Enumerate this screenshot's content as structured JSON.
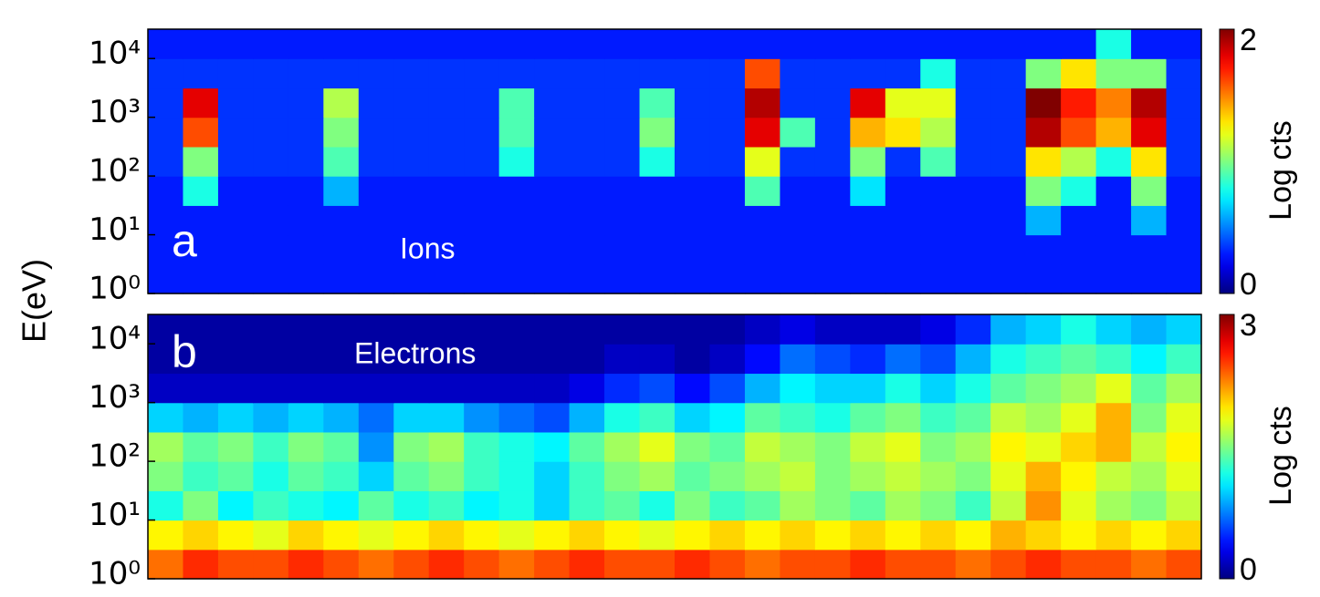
{
  "ylabel": "E(eV)",
  "chart_data": [
    {
      "type": "heatmap",
      "panel_label": "a",
      "annotation": "Ions",
      "colormap": "jet",
      "log_y": true,
      "ylim": [
        1,
        31623
      ],
      "yticks": [
        {
          "value": 1,
          "label": "10⁰"
        },
        {
          "value": 10,
          "label": "10¹"
        },
        {
          "value": 100,
          "label": "10²"
        },
        {
          "value": 1000,
          "label": "10³"
        },
        {
          "value": 10000,
          "label": "10⁴"
        }
      ],
      "zlim": [
        0,
        2
      ],
      "zticks": [
        0,
        2
      ],
      "colorbar_label": "Log cts",
      "z": [
        [
          0.3,
          0.3,
          0.3,
          0.3,
          0.3,
          0.3,
          0.3,
          0.3,
          0.3,
          0.3,
          0.3,
          0.3,
          0.3,
          0.3,
          0.3,
          0.3,
          0.3,
          0.3,
          0.3,
          0.3,
          0.3,
          0.3,
          0.3,
          0.3,
          0.3,
          0.3,
          0.3,
          0.3,
          0.3,
          0.3
        ],
        [
          0.3,
          0.3,
          0.3,
          0.3,
          0.3,
          0.3,
          0.3,
          0.3,
          0.3,
          0.3,
          0.3,
          0.3,
          0.3,
          0.3,
          0.3,
          0.3,
          0.3,
          0.3,
          0.3,
          0.3,
          0.3,
          0.3,
          0.3,
          0.3,
          0.3,
          0.3,
          0.3,
          0.3,
          0.3,
          0.3
        ],
        [
          0.3,
          0.3,
          0.3,
          0.3,
          0.3,
          0.3,
          0.3,
          0.3,
          0.3,
          0.3,
          0.3,
          0.3,
          0.3,
          0.3,
          0.3,
          0.3,
          0.3,
          0.3,
          0.3,
          0.3,
          0.3,
          0.3,
          0.3,
          0.3,
          0.3,
          0.6,
          0.3,
          0.3,
          0.6,
          0.3
        ],
        [
          0.3,
          0.8,
          0.3,
          0.3,
          0.3,
          0.6,
          0.3,
          0.3,
          0.3,
          0.3,
          0.3,
          0.3,
          0.3,
          0.3,
          0.3,
          0.3,
          0.3,
          0.9,
          0.3,
          0.3,
          0.7,
          0.3,
          0.3,
          0.3,
          0.3,
          1.0,
          0.8,
          0.3,
          1.0,
          0.3
        ],
        [
          0.35,
          1.0,
          0.35,
          0.35,
          0.35,
          0.9,
          0.35,
          0.35,
          0.35,
          0.35,
          0.8,
          0.35,
          0.35,
          0.35,
          0.8,
          0.35,
          0.35,
          1.2,
          0.35,
          0.35,
          1.0,
          0.35,
          0.9,
          0.35,
          0.35,
          1.3,
          1.1,
          0.8,
          1.3,
          0.35
        ],
        [
          0.35,
          1.6,
          0.35,
          0.35,
          0.35,
          1.0,
          0.35,
          0.35,
          0.35,
          0.35,
          0.9,
          0.35,
          0.35,
          0.35,
          1.0,
          0.35,
          0.35,
          1.8,
          0.9,
          0.35,
          1.4,
          1.3,
          1.1,
          0.35,
          0.35,
          1.9,
          1.6,
          1.4,
          1.8,
          0.35
        ],
        [
          0.35,
          1.8,
          0.35,
          0.35,
          0.35,
          1.1,
          0.35,
          0.35,
          0.35,
          0.35,
          0.9,
          0.35,
          0.35,
          0.35,
          0.9,
          0.35,
          0.35,
          1.9,
          0.35,
          0.35,
          1.8,
          1.2,
          1.2,
          0.35,
          0.35,
          2.0,
          1.7,
          1.5,
          1.9,
          0.35
        ],
        [
          0.35,
          0.35,
          0.35,
          0.35,
          0.35,
          0.35,
          0.35,
          0.35,
          0.35,
          0.35,
          0.35,
          0.35,
          0.35,
          0.35,
          0.35,
          0.35,
          0.35,
          1.6,
          0.35,
          0.35,
          0.35,
          0.35,
          0.8,
          0.35,
          0.35,
          1.0,
          1.3,
          1.0,
          1.0,
          0.35
        ],
        [
          0.3,
          0.3,
          0.3,
          0.3,
          0.3,
          0.3,
          0.3,
          0.3,
          0.3,
          0.3,
          0.3,
          0.3,
          0.3,
          0.3,
          0.3,
          0.3,
          0.3,
          0.3,
          0.3,
          0.3,
          0.3,
          0.3,
          0.3,
          0.3,
          0.3,
          0.3,
          0.3,
          0.8,
          0.3,
          0.3
        ]
      ]
    },
    {
      "type": "heatmap",
      "panel_label": "b",
      "annotation": "Electrons",
      "colormap": "jet",
      "log_y": true,
      "ylim": [
        1,
        31623
      ],
      "yticks": [
        {
          "value": 1,
          "label": "10⁰"
        },
        {
          "value": 10,
          "label": "10¹"
        },
        {
          "value": 100,
          "label": "10²"
        },
        {
          "value": 1000,
          "label": "10³"
        },
        {
          "value": 10000,
          "label": "10⁴"
        }
      ],
      "zlim": [
        0,
        3
      ],
      "zticks": [
        0,
        3
      ],
      "colorbar_label": "Log cts",
      "z": [
        [
          2.3,
          2.5,
          2.4,
          2.4,
          2.5,
          2.4,
          2.3,
          2.4,
          2.5,
          2.4,
          2.3,
          2.4,
          2.5,
          2.4,
          2.4,
          2.5,
          2.4,
          2.3,
          2.4,
          2.4,
          2.5,
          2.4,
          2.4,
          2.3,
          2.4,
          2.5,
          2.4,
          2.4,
          2.3,
          2.4
        ],
        [
          1.9,
          2.0,
          1.9,
          1.8,
          2.0,
          1.9,
          1.8,
          1.9,
          2.0,
          1.9,
          1.8,
          1.9,
          2.0,
          1.9,
          1.8,
          1.9,
          2.0,
          1.9,
          2.0,
          1.9,
          2.0,
          1.9,
          2.0,
          1.9,
          2.1,
          2.0,
          1.9,
          2.0,
          1.9,
          2.0
        ],
        [
          1.2,
          1.5,
          1.1,
          1.3,
          1.2,
          1.1,
          1.4,
          1.2,
          1.3,
          1.1,
          1.2,
          1.0,
          1.3,
          1.4,
          1.2,
          1.5,
          1.3,
          1.4,
          1.6,
          1.5,
          1.4,
          1.6,
          1.5,
          1.3,
          1.7,
          2.2,
          1.8,
          1.6,
          1.5,
          1.7
        ],
        [
          1.5,
          1.3,
          1.4,
          1.2,
          1.4,
          1.3,
          1.0,
          1.4,
          1.5,
          1.3,
          1.2,
          1.0,
          1.3,
          1.5,
          1.6,
          1.4,
          1.5,
          1.6,
          1.7,
          1.5,
          1.6,
          1.7,
          1.6,
          1.5,
          1.8,
          2.1,
          1.9,
          1.7,
          1.6,
          1.8
        ],
        [
          1.6,
          1.4,
          1.5,
          1.3,
          1.5,
          1.4,
          0.8,
          1.5,
          1.6,
          1.3,
          1.2,
          1.1,
          1.4,
          1.6,
          1.8,
          1.5,
          1.4,
          1.7,
          1.6,
          1.5,
          1.7,
          1.8,
          1.5,
          1.6,
          1.9,
          1.8,
          2.0,
          2.1,
          1.7,
          1.9
        ],
        [
          1.0,
          0.9,
          1.0,
          0.9,
          1.0,
          0.9,
          0.7,
          1.0,
          1.0,
          0.8,
          0.7,
          0.6,
          0.9,
          1.2,
          1.3,
          1.0,
          1.1,
          1.4,
          1.3,
          1.2,
          1.4,
          1.5,
          1.3,
          1.4,
          1.7,
          1.6,
          1.8,
          2.1,
          1.5,
          1.8
        ],
        [
          0.2,
          0.2,
          0.2,
          0.2,
          0.2,
          0.2,
          0.2,
          0.2,
          0.2,
          0.2,
          0.2,
          0.2,
          0.3,
          0.5,
          0.6,
          0.4,
          0.6,
          0.9,
          1.1,
          1.0,
          1.0,
          1.2,
          1.0,
          1.2,
          1.4,
          1.5,
          1.6,
          1.8,
          1.4,
          1.6
        ],
        [
          0.1,
          0.1,
          0.1,
          0.1,
          0.1,
          0.1,
          0.1,
          0.1,
          0.1,
          0.1,
          0.1,
          0.1,
          0.1,
          0.2,
          0.2,
          0.1,
          0.2,
          0.4,
          0.7,
          0.6,
          0.5,
          0.7,
          0.6,
          0.9,
          1.2,
          1.3,
          1.4,
          1.3,
          1.1,
          1.3
        ],
        [
          0.1,
          0.1,
          0.1,
          0.1,
          0.1,
          0.1,
          0.1,
          0.1,
          0.1,
          0.1,
          0.1,
          0.1,
          0.1,
          0.1,
          0.1,
          0.1,
          0.1,
          0.2,
          0.3,
          0.2,
          0.2,
          0.2,
          0.3,
          0.5,
          0.9,
          1.0,
          1.2,
          1.0,
          0.9,
          1.0
        ]
      ]
    }
  ]
}
